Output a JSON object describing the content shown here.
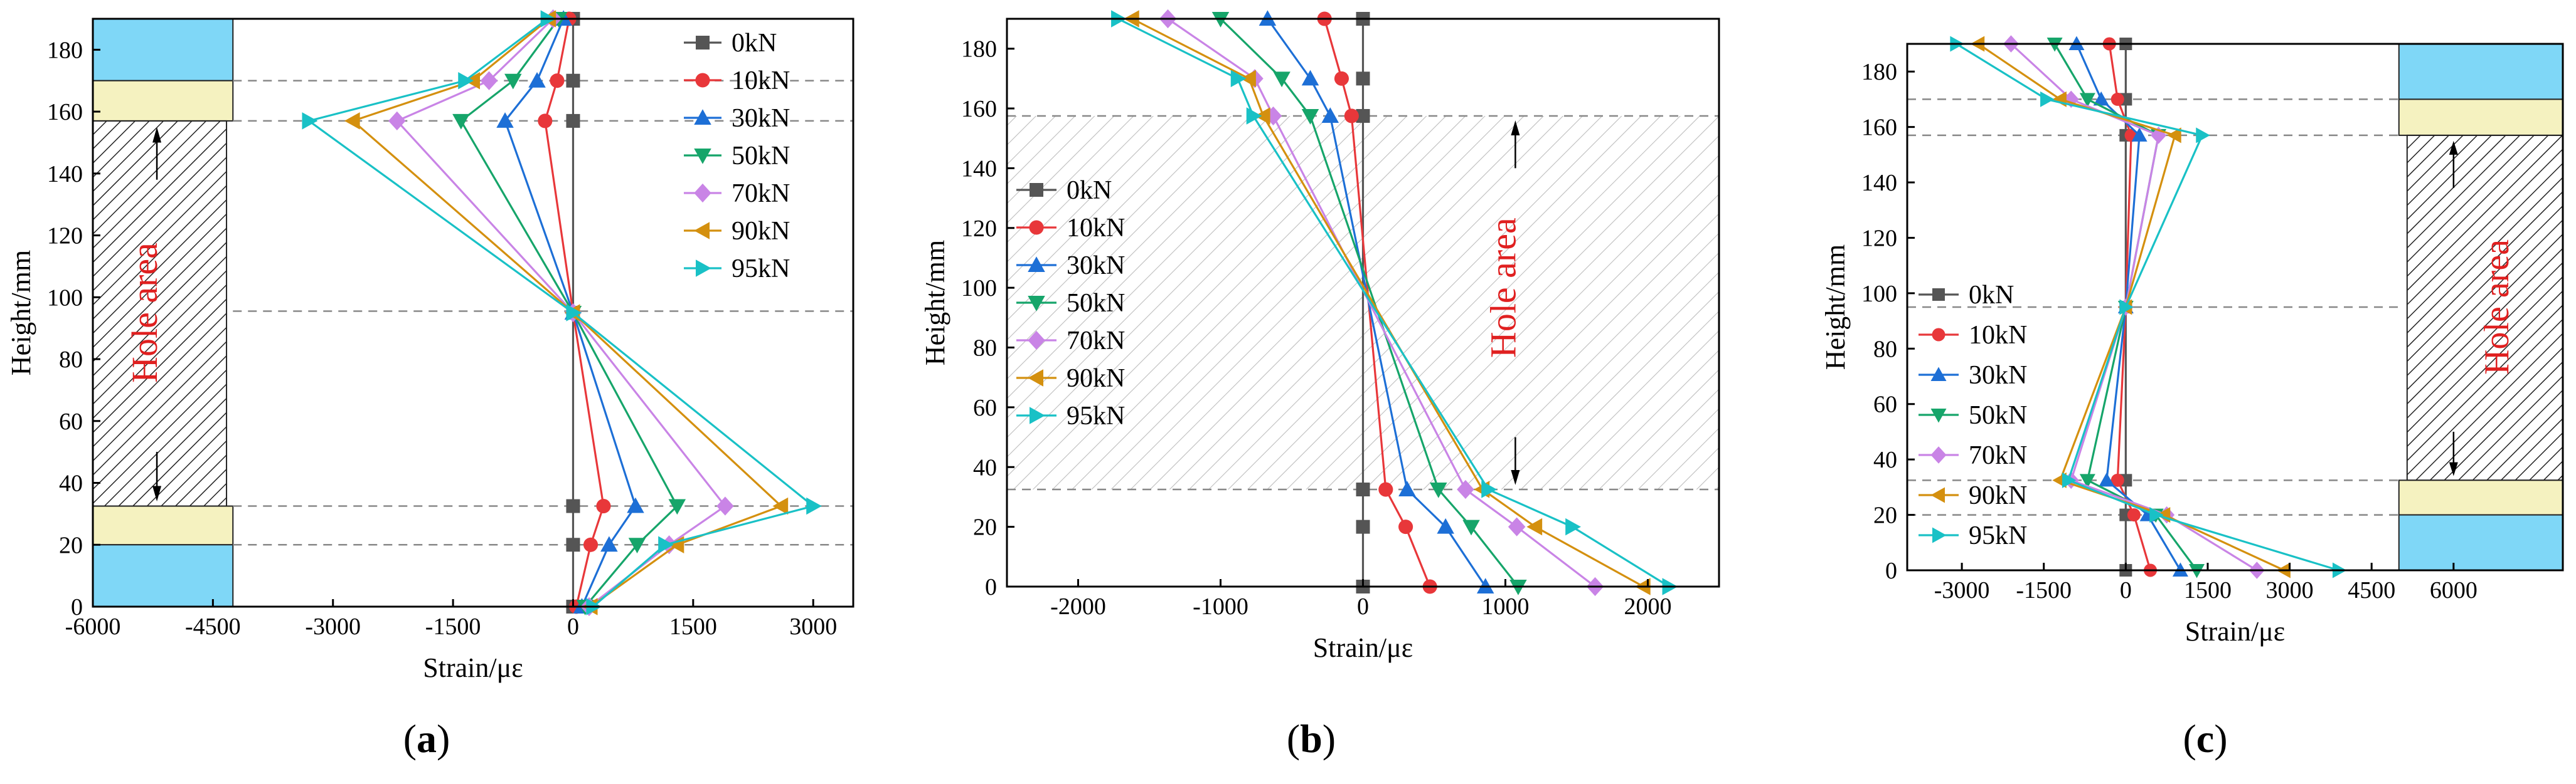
{
  "figure": {
    "panels": [
      "a",
      "b",
      "c"
    ],
    "colors": {
      "0kN": "#555555",
      "10kN": "#e8373a",
      "30kN": "#1d6fd6",
      "50kN": "#16a56a",
      "70kN": "#c984e6",
      "90kN": "#d4900f",
      "95kN": "#19c1c6",
      "hole_label": "#e02020",
      "support_blue": "#7fd7f7",
      "support_yellow": "#f5f2c0",
      "dashed": "#888888"
    }
  },
  "chart_data": [
    {
      "id": "a",
      "type": "line",
      "panel_label": "a",
      "xlabel": "Strain/με",
      "ylabel": "Height/mm",
      "xlim": [
        -6000,
        3500
      ],
      "ylim": [
        0,
        190
      ],
      "x_ticks": [
        -6000,
        -4500,
        -3000,
        -1500,
        0,
        1500,
        3000
      ],
      "x_tick_labels": [
        "-6000",
        "-4500",
        "-3000",
        "-1500",
        "0",
        "1500",
        "3000"
      ],
      "y_ticks": [
        0,
        20,
        40,
        60,
        80,
        100,
        120,
        140,
        160,
        180
      ],
      "hole_area_label": "Hole area",
      "dashed_y": [
        170,
        157,
        95.5,
        32.5,
        20
      ],
      "legend_position": "top-right",
      "series": [
        {
          "name": "0kN",
          "marker": "square",
          "points": [
            [
              0,
              190
            ],
            [
              0,
              170
            ],
            [
              0,
              157
            ],
            [
              0,
              95
            ],
            [
              0,
              32.5
            ],
            [
              0,
              20
            ],
            [
              0,
              0
            ]
          ]
        },
        {
          "name": "10kN",
          "marker": "circle",
          "points": [
            [
              -50,
              190
            ],
            [
              -200,
              170
            ],
            [
              -350,
              157
            ],
            [
              0,
              95
            ],
            [
              380,
              32.5
            ],
            [
              220,
              20
            ],
            [
              40,
              0
            ]
          ]
        },
        {
          "name": "30kN",
          "marker": "triangle-up",
          "points": [
            [
              -120,
              190
            ],
            [
              -450,
              170
            ],
            [
              -850,
              157
            ],
            [
              0,
              95
            ],
            [
              780,
              32.5
            ],
            [
              450,
              20
            ],
            [
              110,
              0
            ]
          ]
        },
        {
          "name": "50kN",
          "marker": "triangle-down",
          "points": [
            [
              -180,
              190
            ],
            [
              -750,
              170
            ],
            [
              -1400,
              157
            ],
            [
              0,
              95
            ],
            [
              1300,
              32.5
            ],
            [
              800,
              20
            ],
            [
              150,
              0
            ]
          ]
        },
        {
          "name": "70kN",
          "marker": "diamond",
          "points": [
            [
              -250,
              190
            ],
            [
              -1050,
              170
            ],
            [
              -2200,
              157
            ],
            [
              0,
              95
            ],
            [
              1900,
              32.5
            ],
            [
              1200,
              20
            ],
            [
              200,
              0
            ]
          ]
        },
        {
          "name": "90kN",
          "marker": "triangle-left",
          "points": [
            [
              -300,
              190
            ],
            [
              -1250,
              170
            ],
            [
              -2750,
              157
            ],
            [
              0,
              95
            ],
            [
              2600,
              32.5
            ],
            [
              1300,
              20
            ],
            [
              220,
              0
            ]
          ]
        },
        {
          "name": "95kN",
          "marker": "triangle-right",
          "points": [
            [
              -320,
              190
            ],
            [
              -1350,
              170
            ],
            [
              -3300,
              157
            ],
            [
              0,
              95
            ],
            [
              3000,
              32.5
            ],
            [
              1150,
              20
            ],
            [
              250,
              0
            ]
          ]
        }
      ]
    },
    {
      "id": "b",
      "type": "line",
      "panel_label": "b",
      "xlabel": "Strain/με",
      "ylabel": "Height/mm",
      "xlim": [
        -2500,
        2500
      ],
      "ylim": [
        0,
        190
      ],
      "x_ticks": [
        -2000,
        -1000,
        0,
        1000,
        2000
      ],
      "x_tick_labels": [
        "-2000",
        "-1000",
        "0",
        "1000",
        "2000"
      ],
      "y_ticks": [
        0,
        20,
        40,
        60,
        80,
        100,
        120,
        140,
        160,
        180
      ],
      "hole_area_label": "Hole area",
      "dashed_y": [
        157.5,
        32.5
      ],
      "legend_position": "middle-left",
      "series": [
        {
          "name": "0kN",
          "marker": "square",
          "points": [
            [
              0,
              190
            ],
            [
              0,
              170
            ],
            [
              0,
              157.5
            ],
            [
              0,
              32.5
            ],
            [
              0,
              20
            ],
            [
              0,
              0
            ]
          ]
        },
        {
          "name": "10kN",
          "marker": "circle",
          "points": [
            [
              -270,
              190
            ],
            [
              -150,
              170
            ],
            [
              -80,
              157.5
            ],
            [
              160,
              32.5
            ],
            [
              300,
              20
            ],
            [
              470,
              0
            ]
          ]
        },
        {
          "name": "30kN",
          "marker": "triangle-up",
          "points": [
            [
              -670,
              190
            ],
            [
              -370,
              170
            ],
            [
              -230,
              157.5
            ],
            [
              310,
              32.5
            ],
            [
              580,
              20
            ],
            [
              860,
              0
            ]
          ]
        },
        {
          "name": "50kN",
          "marker": "triangle-down",
          "points": [
            [
              -1000,
              190
            ],
            [
              -570,
              170
            ],
            [
              -370,
              157.5
            ],
            [
              530,
              32.5
            ],
            [
              760,
              20
            ],
            [
              1090,
              0
            ]
          ]
        },
        {
          "name": "70kN",
          "marker": "diamond",
          "points": [
            [
              -1370,
              190
            ],
            [
              -760,
              170
            ],
            [
              -630,
              157.5
            ],
            [
              720,
              32.5
            ],
            [
              1080,
              20
            ],
            [
              1630,
              0
            ]
          ]
        },
        {
          "name": "90kN",
          "marker": "triangle-left",
          "points": [
            [
              -1620,
              190
            ],
            [
              -800,
              170
            ],
            [
              -700,
              157.5
            ],
            [
              840,
              32.5
            ],
            [
              1210,
              20
            ],
            [
              1970,
              0
            ]
          ]
        },
        {
          "name": "95kN",
          "marker": "triangle-right",
          "points": [
            [
              -1720,
              190
            ],
            [
              -880,
              170
            ],
            [
              -770,
              157.5
            ],
            [
              880,
              32.5
            ],
            [
              1470,
              20
            ],
            [
              2150,
              0
            ]
          ]
        }
      ]
    },
    {
      "id": "c",
      "type": "line",
      "panel_label": "c",
      "xlabel": "Strain/με",
      "ylabel": "Height/mm",
      "xlim": [
        -4000,
        8000
      ],
      "ylim": [
        0,
        190
      ],
      "x_ticks": [
        -3000,
        -1500,
        0,
        1500,
        3000,
        4500,
        6000
      ],
      "x_tick_labels": [
        "-3000",
        "-1500",
        "0",
        "1500",
        "3000",
        "4500",
        "6000"
      ],
      "y_ticks": [
        0,
        20,
        40,
        60,
        80,
        100,
        120,
        140,
        160,
        180
      ],
      "hole_area_label": "Hole area",
      "dashed_y": [
        170,
        157,
        95,
        32.5,
        20
      ],
      "legend_position": "middle-left",
      "series": [
        {
          "name": "0kN",
          "marker": "square",
          "points": [
            [
              0,
              190
            ],
            [
              0,
              170
            ],
            [
              0,
              157
            ],
            [
              0,
              95
            ],
            [
              0,
              32.5
            ],
            [
              0,
              20
            ],
            [
              0,
              0
            ]
          ]
        },
        {
          "name": "10kN",
          "marker": "circle",
          "points": [
            [
              -300,
              190
            ],
            [
              -150,
              170
            ],
            [
              100,
              157
            ],
            [
              0,
              95
            ],
            [
              -150,
              32.5
            ],
            [
              150,
              20
            ],
            [
              450,
              0
            ]
          ]
        },
        {
          "name": "30kN",
          "marker": "triangle-up",
          "points": [
            [
              -900,
              190
            ],
            [
              -450,
              170
            ],
            [
              250,
              157
            ],
            [
              0,
              95
            ],
            [
              -350,
              32.5
            ],
            [
              400,
              20
            ],
            [
              1000,
              0
            ]
          ]
        },
        {
          "name": "50kN",
          "marker": "triangle-down",
          "points": [
            [
              -1300,
              190
            ],
            [
              -700,
              170
            ],
            [
              600,
              157
            ],
            [
              0,
              95
            ],
            [
              -700,
              32.5
            ],
            [
              550,
              20
            ],
            [
              1300,
              0
            ]
          ]
        },
        {
          "name": "70kN",
          "marker": "diamond",
          "points": [
            [
              -2100,
              190
            ],
            [
              -1000,
              170
            ],
            [
              600,
              157
            ],
            [
              0,
              95
            ],
            [
              -1000,
              32.5
            ],
            [
              750,
              20
            ],
            [
              2400,
              0
            ]
          ]
        },
        {
          "name": "90kN",
          "marker": "triangle-left",
          "points": [
            [
              -2700,
              190
            ],
            [
              -1200,
              170
            ],
            [
              900,
              157
            ],
            [
              0,
              95
            ],
            [
              -1200,
              32.5
            ],
            [
              700,
              20
            ],
            [
              2900,
              0
            ]
          ]
        },
        {
          "name": "95kN",
          "marker": "triangle-right",
          "points": [
            [
              -3100,
              190
            ],
            [
              -1450,
              170
            ],
            [
              1400,
              157
            ],
            [
              0,
              95
            ],
            [
              -1050,
              32.5
            ],
            [
              550,
              20
            ],
            [
              3900,
              0
            ]
          ]
        }
      ]
    }
  ]
}
